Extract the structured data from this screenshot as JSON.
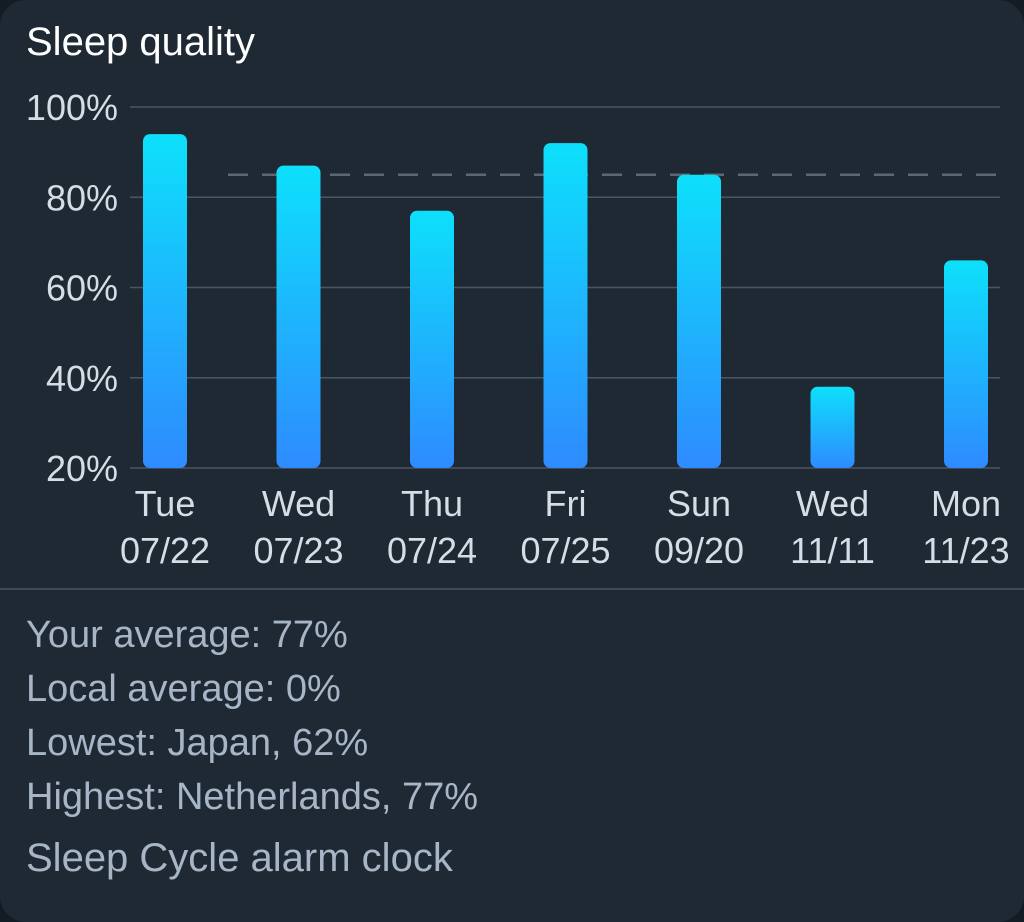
{
  "widget": {
    "title": "Sleep quality"
  },
  "chart_data": {
    "type": "bar",
    "categories": [
      [
        "Tue",
        "07/22"
      ],
      [
        "Wed",
        "07/23"
      ],
      [
        "Thu",
        "07/24"
      ],
      [
        "Fri",
        "07/25"
      ],
      [
        "Sun",
        "09/20"
      ],
      [
        "Wed",
        "11/11"
      ],
      [
        "Mon",
        "11/23"
      ]
    ],
    "values": [
      94,
      87,
      77,
      92,
      85,
      38,
      66
    ],
    "ylim": [
      20,
      100
    ],
    "yticks": [
      20,
      40,
      60,
      80,
      100
    ],
    "ytick_labels": [
      "20%",
      "40%",
      "60%",
      "80%",
      "100%"
    ],
    "reference_line": 85,
    "grid": true,
    "colors": {
      "bar_top": "#0de0fb",
      "bar_bottom": "#2e8bff",
      "grid": "#4a5664",
      "tick_label": "#d5dde6",
      "reference_line": "#5c6773"
    }
  },
  "stats": {
    "your_average": "Your average: 77%",
    "local_average": "Local average: 0%",
    "lowest": "Lowest: Japan, 62%",
    "highest": "Highest: Netherlands, 77%"
  },
  "footer": {
    "app_name": "Sleep Cycle alarm clock"
  }
}
